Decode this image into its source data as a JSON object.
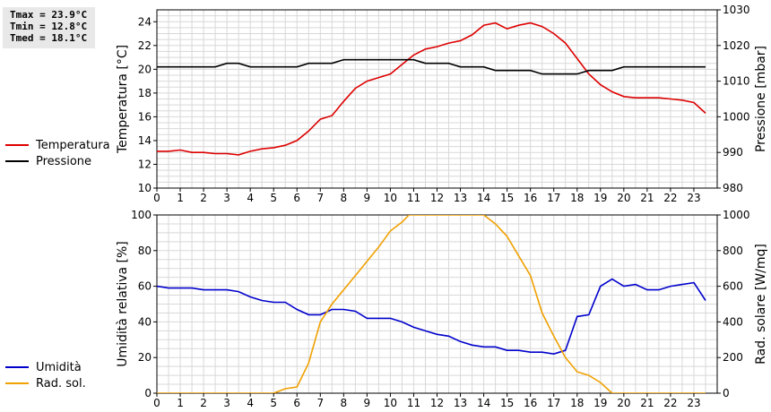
{
  "stats": {
    "tmax": "Tmax = 23.9°C",
    "tmin": "Tmin = 12.8°C",
    "tmed": "Tmed = 18.1°C"
  },
  "chart_data": [
    {
      "type": "line",
      "ylabel": "Temperatura [°C]",
      "y2label": "Pressione [mbar]",
      "xlim": [
        0,
        24
      ],
      "xticks": [
        "0",
        "1",
        "2",
        "3",
        "4",
        "5",
        "6",
        "7",
        "8",
        "9",
        "10",
        "11",
        "12",
        "13",
        "14",
        "15",
        "16",
        "17",
        "18",
        "19",
        "20",
        "21",
        "22",
        "23"
      ],
      "ylim": [
        10,
        25
      ],
      "yticks": [
        "10",
        "12",
        "14",
        "16",
        "18",
        "20",
        "22",
        "24"
      ],
      "y2lim": [
        980,
        1030
      ],
      "y2ticks": [
        "980",
        "990",
        "1000",
        "1010",
        "1020",
        "1030"
      ],
      "grid": true,
      "legend_position": "left",
      "series": [
        {
          "name": "Temperatura",
          "color": "#dd0000",
          "axis": "left",
          "x": [
            0,
            0.5,
            1,
            1.5,
            2,
            2.5,
            3,
            3.5,
            4,
            4.5,
            5,
            5.5,
            6,
            6.5,
            7,
            7.5,
            8,
            8.5,
            9,
            9.5,
            10,
            10.5,
            11,
            11.5,
            12,
            12.5,
            13,
            13.5,
            14,
            14.5,
            15,
            15.5,
            16,
            16.5,
            17,
            17.5,
            18,
            18.5,
            19,
            19.5,
            20,
            20.5,
            21,
            21.5,
            22,
            22.5,
            23,
            23.5
          ],
          "values": [
            13.1,
            13.1,
            13.2,
            13.0,
            13.0,
            12.9,
            12.9,
            12.8,
            13.1,
            13.3,
            13.4,
            13.6,
            14.0,
            14.8,
            15.8,
            16.1,
            17.3,
            18.4,
            19.0,
            19.3,
            19.6,
            20.4,
            21.2,
            21.7,
            21.9,
            22.2,
            22.4,
            22.9,
            23.7,
            23.9,
            23.4,
            23.7,
            23.9,
            23.6,
            23.0,
            22.2,
            20.9,
            19.6,
            18.7,
            18.1,
            17.7,
            17.6,
            17.6,
            17.6,
            17.5,
            17.4,
            17.2,
            16.3
          ]
        },
        {
          "name": "Pressione",
          "color": "#000000",
          "axis": "right",
          "x": [
            0,
            0.5,
            1,
            1.5,
            2,
            2.5,
            3,
            3.5,
            4,
            4.5,
            5,
            5.5,
            6,
            6.5,
            7,
            7.5,
            8,
            8.5,
            9,
            9.5,
            10,
            10.5,
            11,
            11.5,
            12,
            12.5,
            13,
            13.5,
            14,
            14.5,
            15,
            15.5,
            16,
            16.5,
            17,
            17.5,
            18,
            18.5,
            19,
            19.5,
            20,
            20.5,
            21,
            21.5,
            22,
            22.5,
            23,
            23.5
          ],
          "values": [
            1014,
            1014,
            1014,
            1014,
            1014,
            1014,
            1015,
            1015,
            1014,
            1014,
            1014,
            1014,
            1014,
            1015,
            1015,
            1015,
            1016,
            1016,
            1016,
            1016,
            1016,
            1016,
            1016,
            1015,
            1015,
            1015,
            1014,
            1014,
            1014,
            1013,
            1013,
            1013,
            1013,
            1012,
            1012,
            1012,
            1012,
            1013,
            1013,
            1013,
            1014,
            1014,
            1014,
            1014,
            1014,
            1014,
            1014,
            1014
          ]
        }
      ]
    },
    {
      "type": "line",
      "ylabel": "Umidità relativa [%]",
      "y2label": "Rad. solare [W/mq]",
      "xlim": [
        0,
        24
      ],
      "xticks": [
        "0",
        "1",
        "2",
        "3",
        "4",
        "5",
        "6",
        "7",
        "8",
        "9",
        "10",
        "11",
        "12",
        "13",
        "14",
        "15",
        "16",
        "17",
        "18",
        "19",
        "20",
        "21",
        "22",
        "23"
      ],
      "ylim": [
        0,
        100
      ],
      "yticks": [
        "0",
        "20",
        "40",
        "60",
        "80",
        "100"
      ],
      "y2lim": [
        0,
        1000
      ],
      "y2ticks": [
        "0",
        "200",
        "400",
        "600",
        "800",
        "1000"
      ],
      "grid": true,
      "legend_position": "left",
      "series": [
        {
          "name": "Umidità",
          "color": "#0000cc",
          "axis": "left",
          "x": [
            0,
            0.5,
            1,
            1.5,
            2,
            2.5,
            3,
            3.5,
            4,
            4.5,
            5,
            5.5,
            6,
            6.5,
            7,
            7.5,
            8,
            8.5,
            9,
            9.5,
            10,
            10.5,
            11,
            11.5,
            12,
            12.5,
            13,
            13.5,
            14,
            14.5,
            15,
            15.5,
            16,
            16.5,
            17,
            17.5,
            18,
            18.5,
            19,
            19.5,
            20,
            20.5,
            21,
            21.5,
            22,
            22.5,
            23,
            23.5
          ],
          "values": [
            60,
            59,
            59,
            59,
            58,
            58,
            58,
            57,
            54,
            52,
            51,
            51,
            47,
            44,
            44,
            47,
            47,
            46,
            42,
            42,
            42,
            40,
            37,
            35,
            33,
            32,
            29,
            27,
            26,
            26,
            24,
            24,
            23,
            23,
            22,
            24,
            43,
            44,
            60,
            64,
            60,
            61,
            58,
            58,
            60,
            61,
            62,
            52
          ]
        },
        {
          "name": "Rad. sol.",
          "color": "#f0a000",
          "axis": "right",
          "x": [
            0,
            1,
            2,
            3,
            4,
            5,
            5.5,
            6,
            6.5,
            7,
            7.5,
            8,
            8.5,
            9,
            9.5,
            10,
            10.5,
            10.8,
            11,
            12,
            13,
            13.5,
            14,
            14.5,
            15,
            15.5,
            16,
            16.5,
            17,
            17.5,
            18,
            18.5,
            19,
            19.5,
            20,
            21,
            22,
            23,
            23.5
          ],
          "values": [
            0,
            0,
            0,
            0,
            0,
            0,
            25,
            35,
            170,
            400,
            500,
            580,
            660,
            740,
            820,
            910,
            960,
            1000,
            1000,
            1000,
            1000,
            1000,
            1000,
            950,
            880,
            770,
            660,
            450,
            320,
            200,
            120,
            100,
            60,
            0,
            0,
            0,
            0,
            0,
            0
          ]
        }
      ]
    }
  ]
}
